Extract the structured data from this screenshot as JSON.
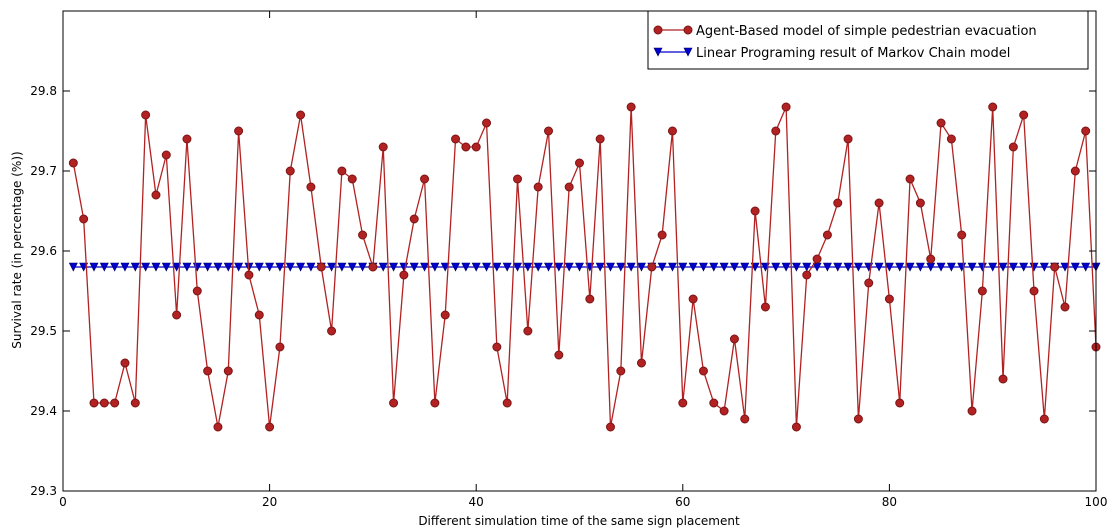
{
  "chart_data": {
    "type": "line",
    "title": "",
    "xlabel": "Different simulation time of the same sign placement",
    "ylabel": "Survival rate (in percentage (%))",
    "xlim": [
      0,
      100
    ],
    "ylim": [
      29.3,
      29.9
    ],
    "x_ticks": [
      "0",
      "20",
      "40",
      "60",
      "80",
      "100"
    ],
    "y_ticks": [
      "29.3",
      "29.4",
      "29.5",
      "29.6",
      "29.7",
      "29.8"
    ],
    "grid": false,
    "legend_position": "top-right",
    "series": [
      {
        "name": "Agent-Based model of simple pedestrian evacuation",
        "color": "#b22222",
        "marker": "circle",
        "x": [
          1,
          2,
          3,
          4,
          5,
          6,
          7,
          8,
          9,
          10,
          11,
          12,
          13,
          14,
          15,
          16,
          17,
          18,
          19,
          20,
          21,
          22,
          23,
          24,
          25,
          26,
          27,
          28,
          29,
          30,
          31,
          32,
          33,
          34,
          35,
          36,
          37,
          38,
          39,
          40,
          41,
          42,
          43,
          44,
          45,
          46,
          47,
          48,
          49,
          50,
          51,
          52,
          53,
          54,
          55,
          56,
          57,
          58,
          59,
          60,
          61,
          62,
          63,
          64,
          65,
          66,
          67,
          68,
          69,
          70,
          71,
          72,
          73,
          74,
          75,
          76,
          77,
          78,
          79,
          80,
          81,
          82,
          83,
          84,
          85,
          86,
          87,
          88,
          89,
          90,
          91,
          92,
          93,
          94,
          95,
          96,
          97,
          98,
          99,
          100
        ],
        "values": [
          29.71,
          29.64,
          29.41,
          29.41,
          29.41,
          29.46,
          29.41,
          29.77,
          29.67,
          29.72,
          29.52,
          29.74,
          29.55,
          29.45,
          29.38,
          29.45,
          29.75,
          29.57,
          29.52,
          29.38,
          29.48,
          29.7,
          29.77,
          29.68,
          29.58,
          29.5,
          29.7,
          29.69,
          29.62,
          29.58,
          29.73,
          29.41,
          29.57,
          29.64,
          29.69,
          29.41,
          29.52,
          29.74,
          29.73,
          29.73,
          29.76,
          29.48,
          29.41,
          29.69,
          29.5,
          29.68,
          29.75,
          29.47,
          29.68,
          29.71,
          29.54,
          29.74,
          29.38,
          29.45,
          29.78,
          29.46,
          29.58,
          29.62,
          29.75,
          29.41,
          29.54,
          29.45,
          29.41,
          29.4,
          29.49,
          29.39,
          29.65,
          29.53,
          29.75,
          29.78,
          29.38,
          29.57,
          29.59,
          29.62,
          29.66,
          29.74,
          29.39,
          29.56,
          29.66,
          29.54,
          29.41,
          29.69,
          29.66,
          29.59,
          29.76,
          29.74,
          29.62,
          29.4,
          29.55,
          29.78,
          29.44,
          29.73,
          29.77,
          29.55,
          29.39,
          29.58,
          29.53,
          29.7,
          29.75,
          29.48
        ]
      },
      {
        "name": "Linear Programing result of Markov Chain model",
        "color": "#0000cc",
        "marker": "triangle-down",
        "x_range": [
          1,
          100
        ],
        "value": 29.58
      }
    ]
  }
}
